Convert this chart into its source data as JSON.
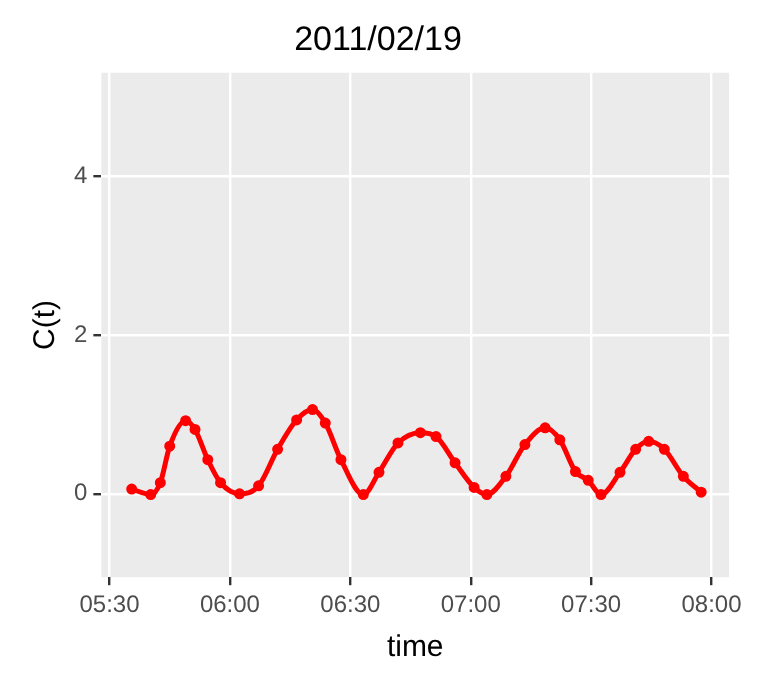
{
  "chart_data": {
    "type": "line",
    "title": "2011/02/19",
    "xlabel": "time",
    "ylabel": "C(t)",
    "series": [
      {
        "color": "#ff0000",
        "x": [
          5.592,
          5.671,
          5.711,
          5.75,
          5.816,
          5.855,
          5.908,
          5.961,
          6.04,
          6.119,
          6.198,
          6.277,
          6.343,
          6.396,
          6.461,
          6.554,
          6.619,
          6.698,
          6.791,
          6.856,
          6.935,
          7.014,
          7.067,
          7.146,
          7.225,
          7.309,
          7.37,
          7.435,
          7.488,
          7.541,
          7.62,
          7.685,
          7.739,
          7.804,
          7.883,
          7.957
        ],
        "values": [
          0.06,
          -0.01,
          0.14,
          0.6,
          0.92,
          0.81,
          0.43,
          0.14,
          0.0,
          0.1,
          0.56,
          0.93,
          1.06,
          0.89,
          0.43,
          -0.01,
          0.27,
          0.64,
          0.77,
          0.72,
          0.39,
          0.08,
          -0.01,
          0.22,
          0.62,
          0.83,
          0.68,
          0.28,
          0.17,
          -0.01,
          0.27,
          0.56,
          0.66,
          0.56,
          0.22,
          0.02
        ]
      }
    ],
    "xlim": [
      5.466,
      8.073
    ],
    "xticks": [
      {
        "value": 5.5,
        "label": "05:30"
      },
      {
        "value": 6,
        "label": "06:00"
      },
      {
        "value": 6.5,
        "label": "06:30"
      },
      {
        "value": 7,
        "label": "07:00"
      },
      {
        "value": 7.5,
        "label": "07:30"
      },
      {
        "value": 8,
        "label": "08:00"
      }
    ],
    "ylim": [
      -1.05,
      5.3
    ],
    "yticks": [
      0,
      2,
      4
    ],
    "grid": true,
    "legend": false,
    "marker": "circle",
    "line_style": "solid"
  }
}
